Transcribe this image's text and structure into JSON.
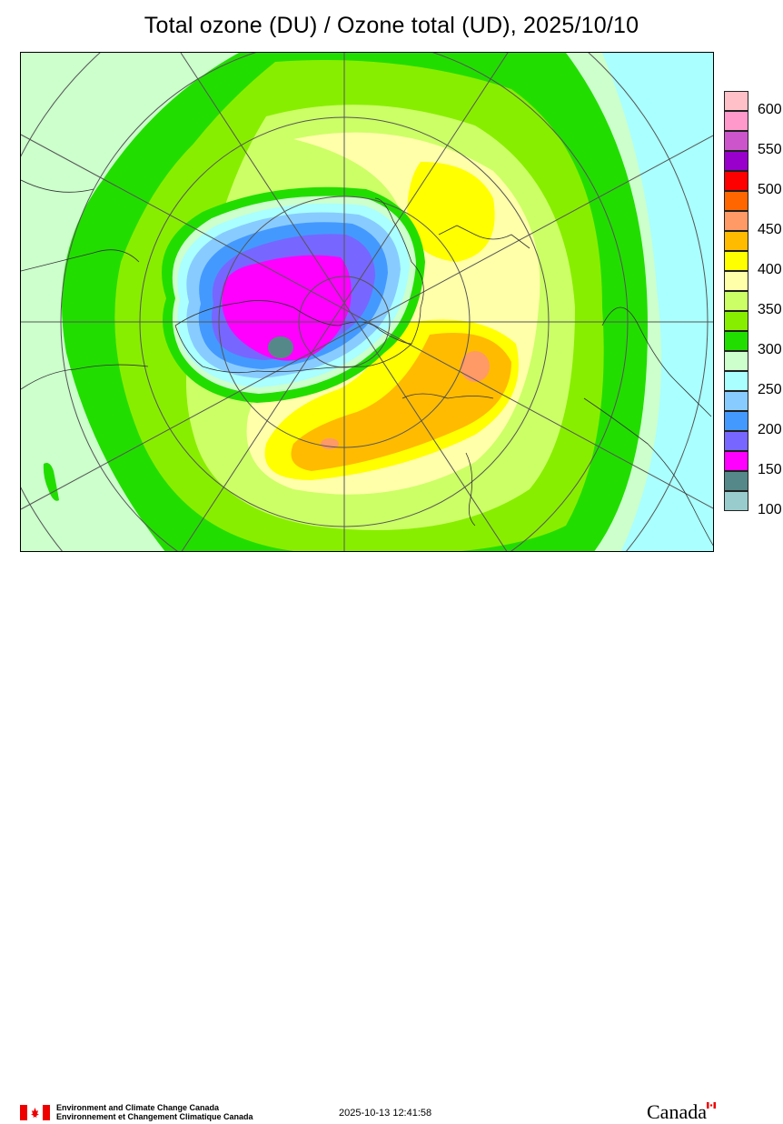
{
  "header": {
    "title": "Total ozone (DU) / Ozone total (UD), 2025/10/10"
  },
  "legend": {
    "labels": [
      "600",
      "550",
      "500",
      "450",
      "400",
      "350",
      "300",
      "250",
      "200",
      "150",
      "100"
    ],
    "colors": [
      "#ffc0c8",
      "#ff99cc",
      "#cc55cc",
      "#9900cc",
      "#ff0000",
      "#ff6600",
      "#ff9966",
      "#ffbb00",
      "#ffff00",
      "#ffffaa",
      "#ccff66",
      "#88ee00",
      "#22dd00",
      "#ccffcc",
      "#aaffff",
      "#88ccff",
      "#4499ff",
      "#7766ff",
      "#ff00ff",
      "#558888",
      "#99cccc"
    ]
  },
  "map": {
    "projection": "polar-stereographic-south",
    "contour_colors": {
      "low_100": "#99cccc",
      "low_150": "#558888",
      "violet_175": "#ff00ff",
      "purple_200": "#7766ff",
      "blue_225": "#4499ff",
      "blue_250": "#88ccff",
      "cyan_275": "#aaffff",
      "pale_300": "#ccffcc",
      "green_325": "#22dd00",
      "lime_350": "#88ee00",
      "yellowgreen_375": "#ccff66",
      "paleyellow_400": "#ffffaa",
      "yellow_425": "#ffff00",
      "orange_450": "#ffbb00",
      "salmon_475": "#ff9966"
    }
  },
  "footer": {
    "agency_en": "Environment and Climate Change Canada",
    "agency_fr": "Environnement et Changement Climatique Canada",
    "timestamp": "2025-10-13 12:41:58",
    "wordmark": "Canada"
  }
}
